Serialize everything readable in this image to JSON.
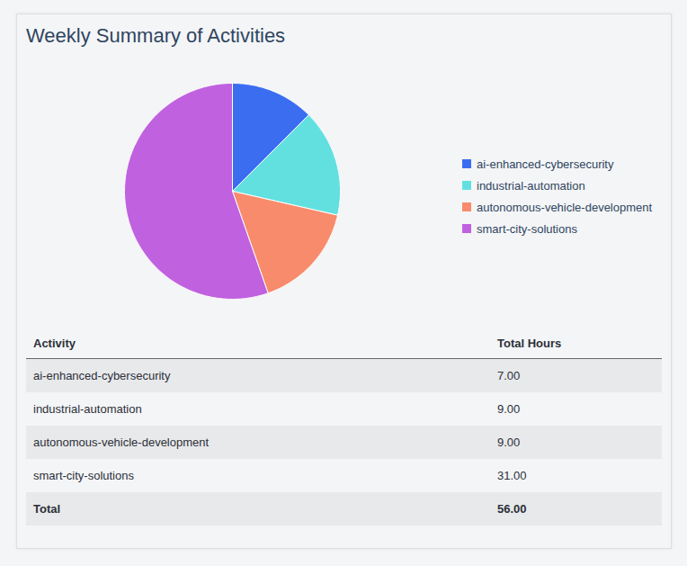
{
  "chart_data": {
    "type": "pie",
    "title": "Weekly Summary of Activities",
    "categories": [
      "ai-enhanced-cybersecurity",
      "industrial-automation",
      "autonomous-vehicle-development",
      "smart-city-solutions"
    ],
    "values": [
      7,
      9,
      9,
      31
    ],
    "colors": [
      "#3a6df0",
      "#62e0e0",
      "#f88b6b",
      "#c061e0"
    ],
    "legend": "right"
  },
  "table": {
    "columns": [
      "Activity",
      "Total Hours"
    ],
    "rows": [
      [
        "ai-enhanced-cybersecurity",
        "7.00"
      ],
      [
        "industrial-automation",
        "9.00"
      ],
      [
        "autonomous-vehicle-development",
        "9.00"
      ],
      [
        "smart-city-solutions",
        "31.00"
      ]
    ],
    "total": [
      "Total",
      "56.00"
    ]
  }
}
